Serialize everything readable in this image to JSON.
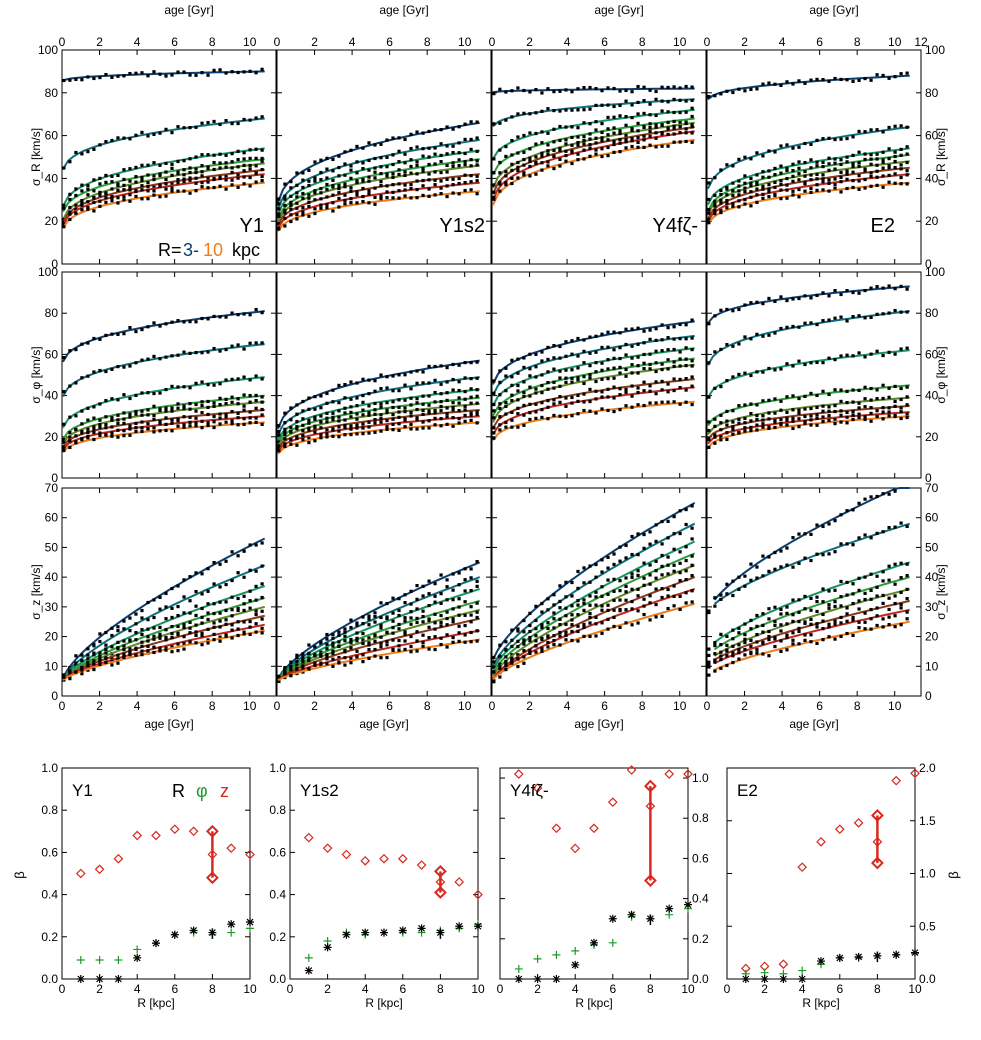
{
  "colors": {
    "r3": "#0b3d6e",
    "r4": "#0e6e7a",
    "r5": "#169460",
    "r6": "#2b9e3a",
    "r7": "#5e8a2a",
    "r8": "#8a3a18",
    "r9": "#c0281e",
    "r10": "#ee7d1a",
    "beta_R": "#d8281e",
    "beta_phi": "#1f9a2a",
    "beta_z": "#000000"
  },
  "labels": {
    "age_axis": "age [Gyr]",
    "sigma_R": "σ_R [km/s]",
    "sigma_phi": "σ_φ [km/s]",
    "sigma_z": "σ_z [km/s]",
    "R_axis": "R [kpc]",
    "beta": "β",
    "legend_R": "R=",
    "legend_from": "3-",
    "legend_to": "10",
    "legend_unit": "kpc",
    "beta_legend_R": "R",
    "beta_legend_phi": "φ",
    "beta_legend_z": "z"
  },
  "models": [
    "Y1",
    "Y1s2",
    "Y4fζ-",
    "E2"
  ],
  "chart_data": [
    {
      "type": "line",
      "title": "",
      "xlabel": "age [Gyr]",
      "ylabel": "σ_R [km/s]",
      "xlim": [
        0,
        11.4
      ],
      "ylim": [
        0,
        100
      ],
      "note": "velocity dispersion vs age for R=3..10 kpc, per model; points + fitted curves",
      "models": {
        "Y1": {
          "R3": [
            85,
            90
          ],
          "R4": [
            40,
            68
          ],
          "R5": [
            22,
            54
          ],
          "R6": [
            20,
            49
          ],
          "R7": [
            16,
            47
          ],
          "R8": [
            15,
            44
          ],
          "R9": [
            14,
            42
          ],
          "R10": [
            13,
            38
          ]
        },
        "Y1s2": {
          "R3": [
            22,
            66
          ],
          "R4": [
            20,
            58
          ],
          "R5": [
            18,
            53
          ],
          "R6": [
            16,
            49
          ],
          "R7": [
            15,
            46
          ],
          "R8": [
            14,
            42
          ],
          "R9": [
            13,
            38
          ],
          "R10": [
            12,
            34
          ]
        },
        "Y4fζ-": {
          "R3": [
            80,
            82
          ],
          "R4": [
            62,
            77
          ],
          "R5": [
            45,
            72
          ],
          "R6": [
            37,
            68
          ],
          "R7": [
            30,
            66
          ],
          "R8": [
            27,
            64
          ],
          "R9": [
            24,
            62
          ],
          "R10": [
            22,
            58
          ]
        },
        "E2": {
          "R3": [
            75,
            88
          ],
          "R4": [
            30,
            64
          ],
          "R5": [
            23,
            54
          ],
          "R6": [
            20,
            51
          ],
          "R7": [
            19,
            48
          ],
          "R8": [
            17,
            45
          ],
          "R9": [
            16,
            42
          ],
          "R10": [
            15,
            38
          ]
        }
      }
    },
    {
      "type": "line",
      "xlabel": "age [Gyr]",
      "ylabel": "σ_φ [km/s]",
      "xlim": [
        0,
        11.4
      ],
      "ylim": [
        0,
        100
      ],
      "models": {
        "Y1": {
          "R3": [
            52,
            81
          ],
          "R4": [
            35,
            65
          ],
          "R5": [
            20,
            49
          ],
          "R6": [
            15,
            40
          ],
          "R7": [
            13,
            37
          ],
          "R8": [
            12,
            33
          ],
          "R9": [
            11,
            30
          ],
          "R10": [
            10,
            27
          ]
        },
        "Y1s2": {
          "R3": [
            18,
            57
          ],
          "R4": [
            16,
            49
          ],
          "R5": [
            14,
            43
          ],
          "R6": [
            13,
            39
          ],
          "R7": [
            12,
            36
          ],
          "R8": [
            11,
            33
          ],
          "R9": [
            10,
            30
          ],
          "R10": [
            9,
            27
          ]
        },
        "Y4fζ-": {
          "R3": [
            40,
            76
          ],
          "R4": [
            35,
            69
          ],
          "R5": [
            30,
            63
          ],
          "R6": [
            25,
            58
          ],
          "R7": [
            22,
            55
          ],
          "R8": [
            20,
            48
          ],
          "R9": [
            17,
            44
          ],
          "R10": [
            15,
            37
          ]
        },
        "E2": {
          "R3": [
            72,
            93
          ],
          "R4": [
            50,
            81
          ],
          "R5": [
            35,
            62
          ],
          "R6": [
            22,
            45
          ],
          "R7": [
            18,
            39
          ],
          "R8": [
            16,
            35
          ],
          "R9": [
            14,
            32
          ],
          "R10": [
            12,
            30
          ]
        }
      }
    },
    {
      "type": "line",
      "xlabel": "age [Gyr]",
      "ylabel": "σ_z [km/s]",
      "xlim": [
        0,
        11.4
      ],
      "ylim": [
        0,
        70
      ],
      "models": {
        "Y1": {
          "R3": [
            5,
            53
          ],
          "R4": [
            5,
            44
          ],
          "R5": [
            5,
            37
          ],
          "R6": [
            5,
            33
          ],
          "R7": [
            5,
            30
          ],
          "R8": [
            5,
            27
          ],
          "R9": [
            5,
            24
          ],
          "R10": [
            5,
            22
          ]
        },
        "Y1s2": {
          "R3": [
            5,
            45
          ],
          "R4": [
            5,
            40
          ],
          "R5": [
            5,
            36
          ],
          "R6": [
            5,
            32
          ],
          "R7": [
            5,
            29
          ],
          "R8": [
            5,
            26
          ],
          "R9": [
            5,
            22
          ],
          "R10": [
            5,
            19
          ]
        },
        "Y4fζ-": {
          "R3": [
            11,
            65
          ],
          "R4": [
            9,
            58
          ],
          "R5": [
            8,
            52
          ],
          "R6": [
            7,
            48
          ],
          "R7": [
            6,
            44
          ],
          "R8": [
            5,
            40
          ],
          "R9": [
            5,
            36
          ],
          "R10": [
            5,
            31
          ]
        },
        "E2": {
          "R3": [
            28,
            72
          ],
          "R4": [
            28,
            58
          ],
          "R5": [
            15,
            45
          ],
          "R6": [
            13,
            40
          ],
          "R7": [
            11,
            36
          ],
          "R8": [
            10,
            32
          ],
          "R9": [
            9,
            29
          ],
          "R10": [
            7,
            25
          ]
        }
      }
    },
    {
      "type": "scatter",
      "xlabel": "R [kpc]",
      "ylabel": "β",
      "x": [
        1,
        2,
        3,
        4,
        5,
        6,
        7,
        8,
        9,
        10
      ],
      "panels": [
        {
          "model": "Y1",
          "ylim": [
            0,
            1.0
          ],
          "beta_R": [
            0.5,
            0.52,
            0.57,
            0.68,
            0.68,
            0.71,
            0.7,
            0.59,
            0.62,
            0.59
          ],
          "beta_phi": [
            0.09,
            0.09,
            0.09,
            0.14,
            0.17,
            0.21,
            0.22,
            0.21,
            0.22,
            0.24
          ],
          "beta_z": [
            0.0,
            0.0,
            0.0,
            0.1,
            0.17,
            0.21,
            0.23,
            0.22,
            0.26,
            0.27
          ],
          "range_R8": [
            0.48,
            0.7
          ]
        },
        {
          "model": "Y1s2",
          "ylim": [
            0,
            1.0
          ],
          "beta_R": [
            0.67,
            0.62,
            0.59,
            0.56,
            0.57,
            0.57,
            0.54,
            0.46,
            0.46,
            0.4
          ],
          "beta_phi": [
            0.1,
            0.18,
            0.22,
            0.21,
            0.22,
            0.22,
            0.22,
            0.23,
            0.24,
            0.26
          ],
          "beta_z": [
            0.04,
            0.15,
            0.21,
            0.22,
            0.22,
            0.23,
            0.24,
            0.22,
            0.25,
            0.25
          ],
          "range_R8": [
            0.41,
            0.51
          ]
        },
        {
          "model": "Y4fζ-",
          "ylim": [
            0,
            1.05
          ],
          "beta_R": [
            1.02,
            0.95,
            0.75,
            0.65,
            0.75,
            0.88,
            1.04,
            0.86,
            1.02,
            1.02
          ],
          "beta_phi": [
            0.05,
            0.1,
            0.12,
            0.14,
            0.17,
            0.18,
            0.31,
            0.3,
            0.32,
            0.35
          ],
          "beta_z": [
            0.0,
            0.0,
            0.0,
            0.07,
            0.18,
            0.3,
            0.32,
            0.3,
            0.35,
            0.37
          ],
          "range_R8": [
            0.49,
            0.96
          ]
        },
        {
          "model": "E2",
          "ylim": [
            0,
            2.0
          ],
          "beta_R": [
            0.1,
            0.12,
            0.14,
            1.06,
            1.3,
            1.42,
            1.48,
            1.3,
            1.88,
            1.95
          ],
          "beta_phi": [
            0.05,
            0.06,
            0.05,
            0.08,
            0.14,
            0.2,
            0.2,
            0.22,
            0.23,
            0.24
          ],
          "beta_z": [
            0.0,
            0.0,
            0.0,
            0.0,
            0.17,
            0.2,
            0.21,
            0.22,
            0.23,
            0.25
          ],
          "range_R8": [
            1.1,
            1.55
          ]
        }
      ]
    }
  ]
}
